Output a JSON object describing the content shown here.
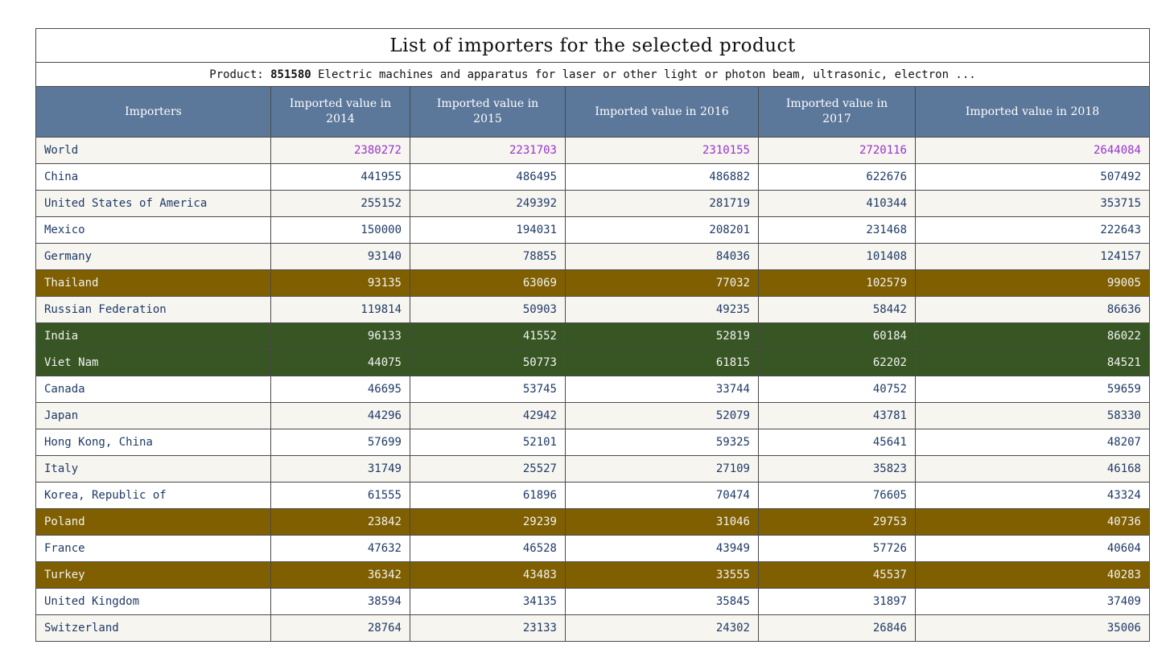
{
  "table": {
    "title": "List of importers for the selected product",
    "product_prefix": "Product: ",
    "product_code": "851580",
    "product_desc": " Electric machines and apparatus for laser or other light or photon beam, ultrasonic, electron ...",
    "headers": [
      "Importers",
      "Imported value in 2014",
      "Imported value in 2015",
      "Imported value in 2016",
      "Imported value in 2017",
      "Imported value in 2018"
    ],
    "rows": [
      {
        "style": "grey",
        "cells": [
          "World",
          "2380272",
          "2231703",
          "2310155",
          "2720116",
          "2644084"
        ]
      },
      {
        "style": "white",
        "cells": [
          "China",
          "441955",
          "486495",
          "486882",
          "622676",
          "507492"
        ]
      },
      {
        "style": "grey",
        "cells": [
          "United States of America",
          "255152",
          "249392",
          "281719",
          "410344",
          "353715"
        ]
      },
      {
        "style": "white",
        "cells": [
          "Mexico",
          "150000",
          "194031",
          "208201",
          "231468",
          "222643"
        ]
      },
      {
        "style": "grey",
        "cells": [
          "Germany",
          "93140",
          "78855",
          "84036",
          "101408",
          "124157"
        ]
      },
      {
        "style": "gold",
        "cells": [
          "Thailand",
          "93135",
          "63069",
          "77032",
          "102579",
          "99005"
        ]
      },
      {
        "style": "grey",
        "cells": [
          "Russian Federation",
          "119814",
          "50903",
          "49235",
          "58442",
          "86636"
        ]
      },
      {
        "style": "green",
        "cells": [
          "India",
          "96133",
          "41552",
          "52819",
          "60184",
          "86022"
        ]
      },
      {
        "style": "green",
        "cells": [
          "Viet Nam",
          "44075",
          "50773",
          "61815",
          "62202",
          "84521"
        ]
      },
      {
        "style": "white",
        "cells": [
          "Canada",
          "46695",
          "53745",
          "33744",
          "40752",
          "59659"
        ]
      },
      {
        "style": "grey",
        "cells": [
          "Japan",
          "44296",
          "42942",
          "52079",
          "43781",
          "58330"
        ]
      },
      {
        "style": "white",
        "cells": [
          "Hong Kong, China",
          "57699",
          "52101",
          "59325",
          "45641",
          "48207"
        ]
      },
      {
        "style": "grey",
        "cells": [
          "Italy",
          "31749",
          "25527",
          "27109",
          "35823",
          "46168"
        ]
      },
      {
        "style": "white",
        "cells": [
          "Korea, Republic of",
          "61555",
          "61896",
          "70474",
          "76605",
          "43324"
        ]
      },
      {
        "style": "gold",
        "cells": [
          "Poland",
          "23842",
          "29239",
          "31046",
          "29753",
          "40736"
        ]
      },
      {
        "style": "white",
        "cells": [
          "France",
          "47632",
          "46528",
          "43949",
          "57726",
          "40604"
        ]
      },
      {
        "style": "gold",
        "cells": [
          "Turkey",
          "36342",
          "43483",
          "33555",
          "45537",
          "40283"
        ]
      },
      {
        "style": "white",
        "cells": [
          "United Kingdom",
          "38594",
          "34135",
          "35845",
          "31897",
          "37409"
        ]
      },
      {
        "style": "grey",
        "cells": [
          "Switzerland",
          "28764",
          "23133",
          "24302",
          "26846",
          "35006"
        ]
      }
    ]
  },
  "colors": {
    "header_bg": "#5b7799",
    "row_white": "#ffffff",
    "row_grey": "#f6f5f0",
    "row_gold": "#7f5f00",
    "row_green": "#375623",
    "world_value": "#9933cc",
    "text": "#1f3a66"
  }
}
